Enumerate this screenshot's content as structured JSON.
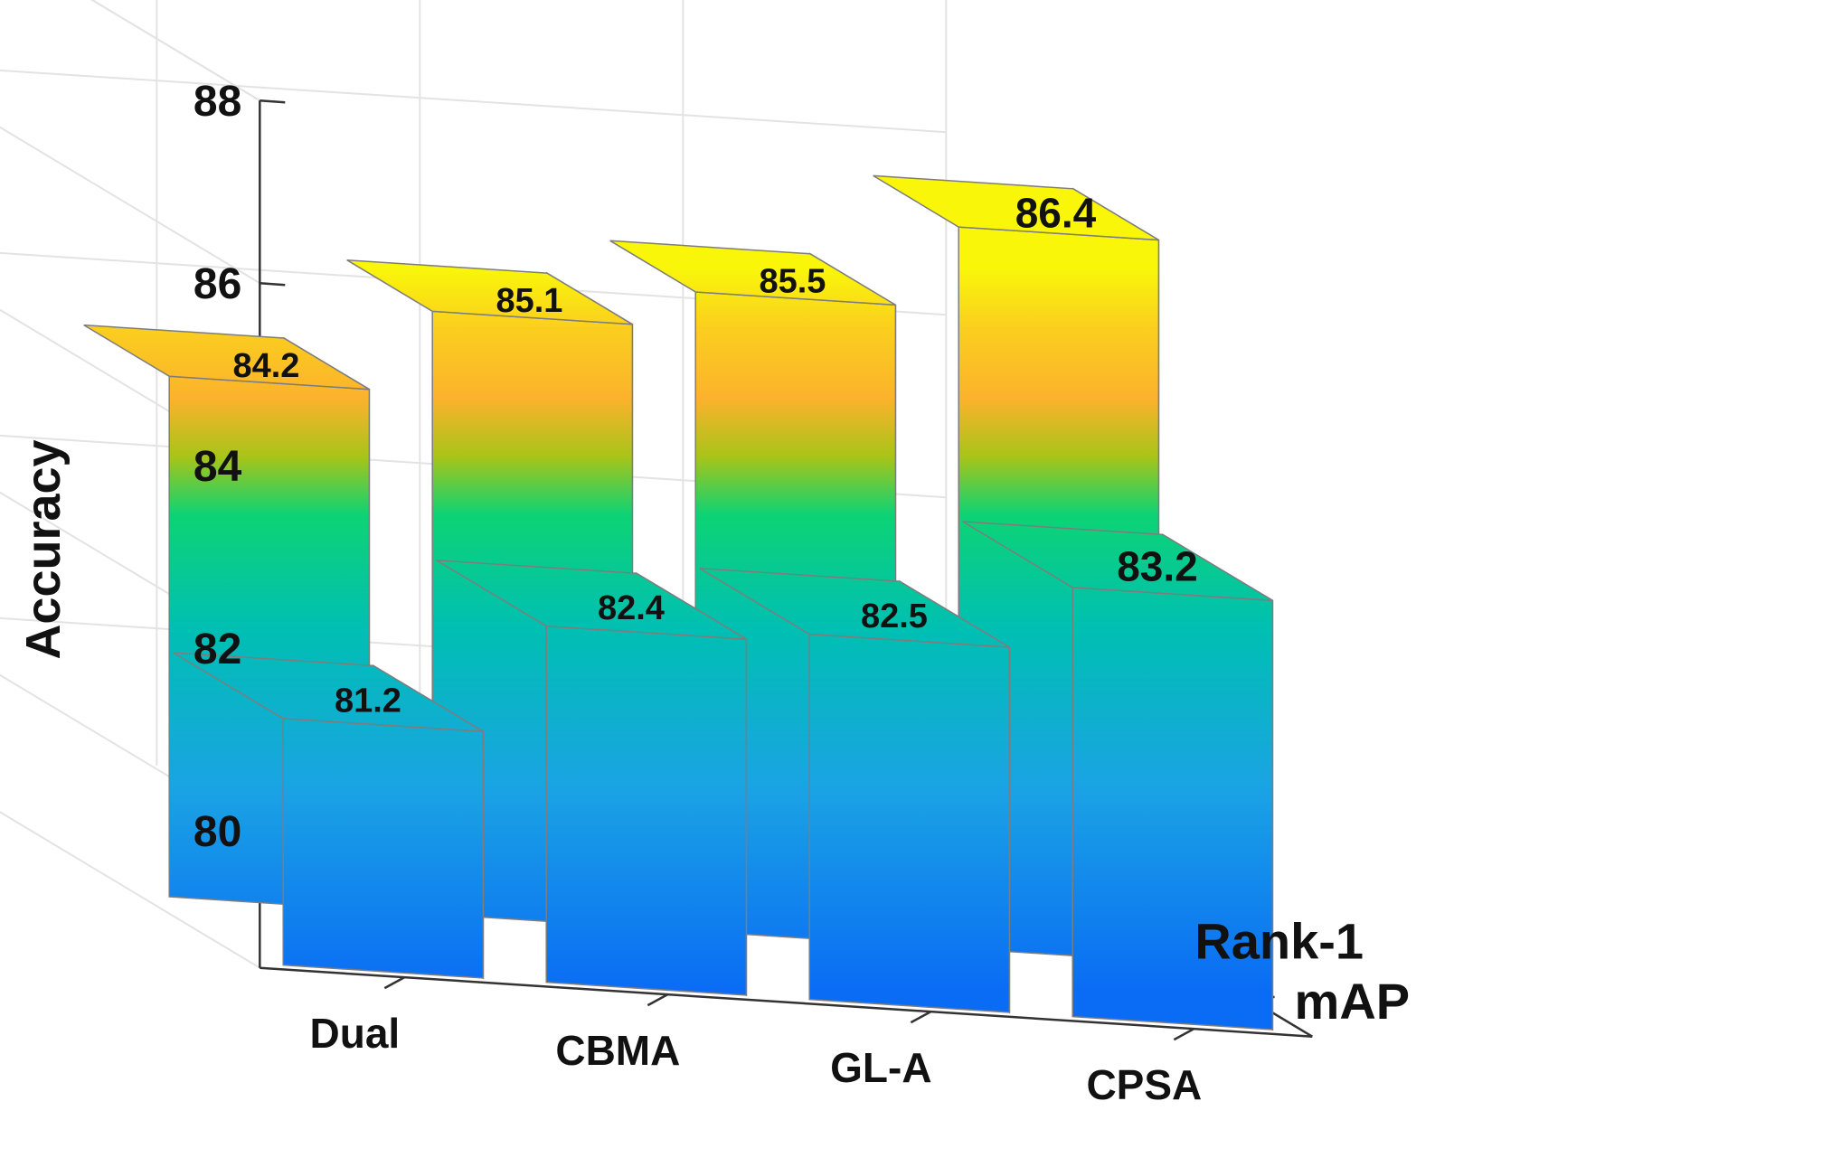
{
  "chart_data": {
    "type": "bar3d",
    "ylabel": "Accuracy",
    "ylim": [
      78.5,
      88
    ],
    "yticks": [
      80,
      82,
      84,
      86,
      88
    ],
    "categories": [
      "Dual",
      "CBMA",
      "GL-A",
      "CPSA"
    ],
    "series": [
      {
        "name": "mAP",
        "values": [
          81.2,
          82.4,
          82.5,
          83.2
        ]
      },
      {
        "name": "Rank-1",
        "values": [
          84.2,
          85.1,
          85.5,
          86.4
        ]
      }
    ],
    "value_labels": [
      [
        "81.2",
        "82.4",
        "82.5",
        "83.2"
      ],
      [
        "84.2",
        "85.1",
        "85.5",
        "86.4"
      ]
    ],
    "grid": true,
    "colormap": "parula-like (blue to yellow by height)"
  }
}
